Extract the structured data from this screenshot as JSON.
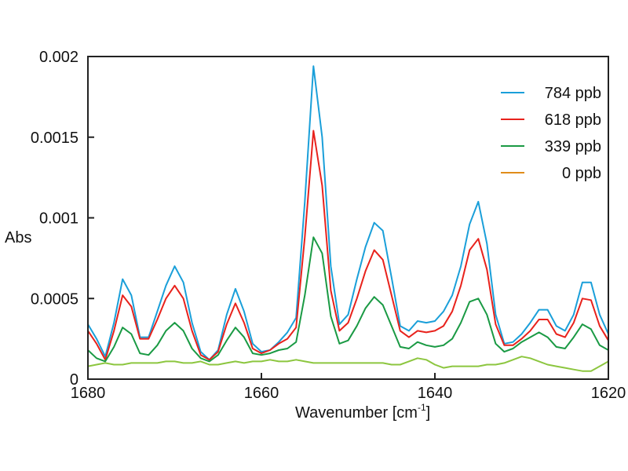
{
  "chart_data": {
    "type": "line",
    "title": "",
    "xlabel": "Wavenumber [cm",
    "xlabel_sup": "-1",
    "xlabel_tail": "]",
    "ylabel": "Abs",
    "xlim": [
      1680,
      1620
    ],
    "ylim": [
      0,
      0.002
    ],
    "x_reversed": true,
    "grid": false,
    "legend_position": "top-right",
    "x_ticks": [
      1680,
      1660,
      1640,
      1620
    ],
    "x_tick_labels": [
      "1680",
      "1660",
      "1640",
      "1620"
    ],
    "y_ticks": [
      0,
      0.0005,
      0.001,
      0.0015,
      0.002
    ],
    "y_tick_labels": [
      "0",
      "0.0005",
      "0.001",
      "0.0015",
      "0.002"
    ],
    "x": [
      1680,
      1679,
      1678,
      1677,
      1676,
      1675,
      1674,
      1673,
      1672,
      1671,
      1670,
      1669,
      1668,
      1667,
      1666,
      1665,
      1664,
      1663,
      1662,
      1661,
      1660,
      1659,
      1658,
      1657,
      1656,
      1655,
      1654,
      1653,
      1652,
      1651,
      1650,
      1649,
      1648,
      1647,
      1646,
      1645,
      1644,
      1643,
      1642,
      1641,
      1640,
      1639,
      1638,
      1637,
      1636,
      1635,
      1634,
      1633,
      1632,
      1631,
      1630,
      1629,
      1628,
      1627,
      1626,
      1625,
      1624,
      1623,
      1622,
      1621,
      1620
    ],
    "series": [
      {
        "name": "784 ppb",
        "color": "#1a9fd9",
        "values": [
          0.00034,
          0.00025,
          0.00014,
          0.00035,
          0.00062,
          0.00052,
          0.00026,
          0.00026,
          0.00042,
          0.00058,
          0.0007,
          0.0006,
          0.00035,
          0.00017,
          0.00012,
          0.00018,
          0.0004,
          0.00056,
          0.00042,
          0.00022,
          0.00017,
          0.00018,
          0.00023,
          0.00029,
          0.00038,
          0.0011,
          0.00194,
          0.0015,
          0.0007,
          0.00034,
          0.0004,
          0.00062,
          0.00082,
          0.00097,
          0.00092,
          0.00063,
          0.00033,
          0.0003,
          0.00036,
          0.00035,
          0.00036,
          0.00042,
          0.00052,
          0.0007,
          0.00096,
          0.0011,
          0.00084,
          0.0004,
          0.00022,
          0.00023,
          0.00028,
          0.00035,
          0.00043,
          0.00043,
          0.00033,
          0.0003,
          0.0004,
          0.0006,
          0.0006,
          0.0004,
          0.00028
        ]
      },
      {
        "name": "618 ppb",
        "color": "#e8221c",
        "values": [
          0.0003,
          0.00022,
          0.00012,
          0.0003,
          0.00052,
          0.00045,
          0.00025,
          0.00025,
          0.00037,
          0.0005,
          0.00058,
          0.0005,
          0.0003,
          0.00015,
          0.00012,
          0.00017,
          0.00034,
          0.00047,
          0.00035,
          0.00019,
          0.00016,
          0.00018,
          0.00022,
          0.00025,
          0.00032,
          0.00088,
          0.00154,
          0.0012,
          0.00055,
          0.0003,
          0.00035,
          0.0005,
          0.00067,
          0.0008,
          0.00074,
          0.00052,
          0.0003,
          0.00026,
          0.0003,
          0.00029,
          0.0003,
          0.00033,
          0.00042,
          0.00058,
          0.0008,
          0.00087,
          0.00068,
          0.00034,
          0.00021,
          0.00021,
          0.00025,
          0.0003,
          0.00037,
          0.00037,
          0.00028,
          0.00026,
          0.00035,
          0.0005,
          0.00049,
          0.00033,
          0.00024
        ]
      },
      {
        "name": "339 ppb",
        "color": "#1a9a44",
        "values": [
          0.00018,
          0.00013,
          0.00011,
          0.0002,
          0.00032,
          0.00028,
          0.00016,
          0.00015,
          0.00021,
          0.0003,
          0.00035,
          0.0003,
          0.00019,
          0.00013,
          0.00011,
          0.00015,
          0.00024,
          0.00032,
          0.00026,
          0.00016,
          0.00015,
          0.00016,
          0.00018,
          0.00019,
          0.00023,
          0.00052,
          0.00088,
          0.00078,
          0.00039,
          0.00022,
          0.00024,
          0.00033,
          0.00044,
          0.00051,
          0.00046,
          0.00033,
          0.0002,
          0.00019,
          0.00023,
          0.00021,
          0.0002,
          0.00021,
          0.00025,
          0.00035,
          0.00048,
          0.0005,
          0.0004,
          0.00022,
          0.00017,
          0.00019,
          0.00023,
          0.00026,
          0.00029,
          0.00026,
          0.0002,
          0.00019,
          0.00026,
          0.00034,
          0.00031,
          0.00021,
          0.00018
        ]
      },
      {
        "name": "0 ppb",
        "color": "#e08c1a",
        "line_color": "#8cc63f",
        "values": [
          8e-05,
          9e-05,
          0.0001,
          9e-05,
          9e-05,
          0.0001,
          0.0001,
          0.0001,
          0.0001,
          0.00011,
          0.00011,
          0.0001,
          0.0001,
          0.00011,
          9e-05,
          9e-05,
          0.0001,
          0.00011,
          0.0001,
          0.00011,
          0.00011,
          0.00012,
          0.00011,
          0.00011,
          0.00012,
          0.00011,
          0.0001,
          0.0001,
          0.0001,
          0.0001,
          0.0001,
          0.0001,
          0.0001,
          0.0001,
          0.0001,
          9e-05,
          9e-05,
          0.00011,
          0.00013,
          0.00012,
          9e-05,
          7e-05,
          8e-05,
          8e-05,
          8e-05,
          8e-05,
          9e-05,
          9e-05,
          0.0001,
          0.00012,
          0.00014,
          0.00013,
          0.00011,
          9e-05,
          8e-05,
          7e-05,
          6e-05,
          5e-05,
          5e-05,
          8e-05,
          0.00011
        ]
      }
    ]
  }
}
